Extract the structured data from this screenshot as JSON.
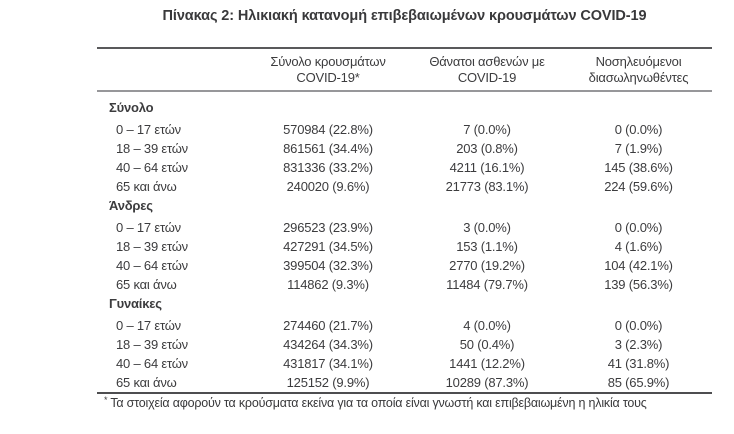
{
  "title": "Πίνακας 2: Ηλικιακή κατανομή επιβεβαιωμένων κρουσμάτων COVID-19",
  "colors": {
    "background": "#ffffff",
    "text": "#3c3c3e",
    "rule_dark": "#59595b",
    "rule_light": "#97979a"
  },
  "table": {
    "columns": [
      {
        "line1": "Σύνολο κρουσμάτων",
        "line2": "COVID-19*"
      },
      {
        "line1": "Θάνατοι ασθενών με",
        "line2": "COVID-19"
      },
      {
        "line1": "Νοσηλευόμενοι",
        "line2": "διασωληνωθέντες"
      }
    ],
    "sections": [
      {
        "header": "Σύνολο",
        "rows": [
          {
            "label": "0 – 17 ετών",
            "cases": "570984 (22.8%)",
            "deaths": "7 (0.0%)",
            "intubated": "0 (0.0%)"
          },
          {
            "label": "18 – 39 ετών",
            "cases": "861561 (34.4%)",
            "deaths": "203 (0.8%)",
            "intubated": "7 (1.9%)"
          },
          {
            "label": "40 – 64 ετών",
            "cases": "831336 (33.2%)",
            "deaths": "4211 (16.1%)",
            "intubated": "145 (38.6%)"
          },
          {
            "label": "65 και άνω",
            "cases": "240020 (9.6%)",
            "deaths": "21773 (83.1%)",
            "intubated": "224 (59.6%)"
          }
        ]
      },
      {
        "header": "Άνδρες",
        "rows": [
          {
            "label": "0 – 17 ετών",
            "cases": "296523 (23.9%)",
            "deaths": "3 (0.0%)",
            "intubated": "0 (0.0%)"
          },
          {
            "label": "18 – 39 ετών",
            "cases": "427291 (34.5%)",
            "deaths": "153 (1.1%)",
            "intubated": "4 (1.6%)"
          },
          {
            "label": "40 – 64 ετών",
            "cases": "399504 (32.3%)",
            "deaths": "2770 (19.2%)",
            "intubated": "104 (42.1%)"
          },
          {
            "label": "65 και άνω",
            "cases": "114862 (9.3%)",
            "deaths": "11484 (79.7%)",
            "intubated": "139 (56.3%)"
          }
        ]
      },
      {
        "header": "Γυναίκες",
        "rows": [
          {
            "label": "0 – 17 ετών",
            "cases": "274460 (21.7%)",
            "deaths": "4 (0.0%)",
            "intubated": "0 (0.0%)"
          },
          {
            "label": "18 – 39 ετών",
            "cases": "434264 (34.3%)",
            "deaths": "50 (0.4%)",
            "intubated": "3 (2.3%)"
          },
          {
            "label": "40 – 64 ετών",
            "cases": "431817 (34.1%)",
            "deaths": "1441 (12.2%)",
            "intubated": "41 (31.8%)"
          },
          {
            "label": "65 και άνω",
            "cases": "125152 (9.9%)",
            "deaths": "10289 (87.3%)",
            "intubated": "85 (65.9%)"
          }
        ]
      }
    ],
    "footnote_marker": "*",
    "footnote": "Τα στοιχεία αφορούν τα κρούσματα εκείνα για τα οποία είναι γνωστή και επιβεβαιωμένη η ηλικία τους"
  }
}
